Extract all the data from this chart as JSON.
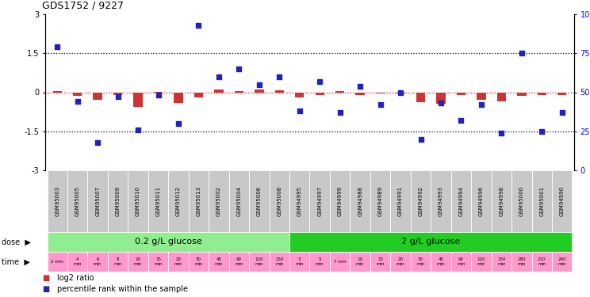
{
  "title": "GDS1752 / 9227",
  "sample_ids": [
    "GSM95003",
    "GSM95005",
    "GSM95007",
    "GSM95009",
    "GSM95010",
    "GSM95011",
    "GSM95012",
    "GSM95013",
    "GSM95002",
    "GSM95004",
    "GSM95006",
    "GSM95008",
    "GSM94995",
    "GSM94997",
    "GSM94999",
    "GSM94988",
    "GSM94989",
    "GSM94991",
    "GSM94992",
    "GSM94993",
    "GSM94994",
    "GSM94996",
    "GSM94998",
    "GSM95000",
    "GSM95001",
    "GSM94990"
  ],
  "log2_ratio": [
    0.05,
    -0.15,
    -0.28,
    -0.1,
    -0.55,
    0.02,
    -0.4,
    -0.2,
    0.12,
    0.05,
    0.1,
    0.08,
    -0.2,
    -0.1,
    0.05,
    -0.12,
    -0.05,
    -0.05,
    -0.38,
    -0.45,
    -0.1,
    -0.28,
    -0.35,
    -0.15,
    -0.12,
    -0.1
  ],
  "percentile_raw": [
    79,
    44,
    18,
    47,
    26,
    48,
    30,
    93,
    60,
    65,
    55,
    60,
    38,
    57,
    37,
    54,
    42,
    50,
    20,
    43,
    32,
    42,
    24,
    75,
    25,
    37
  ],
  "dose_groups": [
    {
      "label": "0.2 g/L glucose",
      "start": 0,
      "end": 12,
      "color": "#90EE90"
    },
    {
      "label": "2 g/L glucose",
      "start": 12,
      "end": 26,
      "color": "#22CC22"
    }
  ],
  "time_labels": [
    "2 min",
    "4\nmin",
    "6\nmin",
    "8\nmin",
    "10\nmin",
    "15\nmin",
    "20\nmin",
    "30\nmin",
    "45\nmin",
    "90\nmin",
    "120\nmin",
    "150\nmin",
    "3\nmin",
    "5\nmin",
    "7 min",
    "10\nmin",
    "15\nmin",
    "20\nmin",
    "30\nmin",
    "45\nmin",
    "90\nmin",
    "120\nmin",
    "150\nmin",
    "180\nmin",
    "210\nmin",
    "240\nmin"
  ],
  "ylim_left": [
    -3,
    3
  ],
  "ylim_right": [
    0,
    100
  ],
  "yticks_left": [
    -3,
    -1.5,
    0,
    1.5,
    3
  ],
  "yticks_right": [
    0,
    25,
    50,
    75,
    100
  ],
  "yticklabels_left": [
    "-3",
    "-1.5",
    "0",
    "1.5",
    "3"
  ],
  "yticklabels_right": [
    "0",
    "25",
    "50",
    "75",
    "100%"
  ],
  "hlines": [
    -1.5,
    0.0,
    1.5
  ],
  "hline_red": 0.0,
  "bar_color": "#CC3333",
  "dot_color": "#2222BB",
  "label_bg": "#C8C8C8",
  "dose_color_lo": "#90EE90",
  "dose_color_hi": "#22CC22",
  "time_color": "#FF99CC"
}
